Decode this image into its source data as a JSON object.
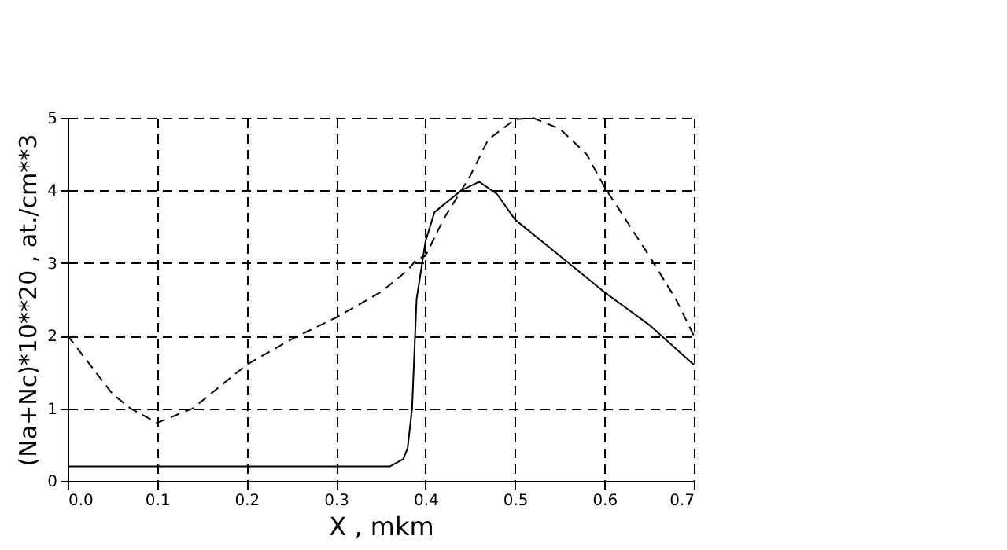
{
  "chart_data": {
    "type": "line",
    "xlabel": "X  ,  mkm",
    "ylabel": "(Na+Nc)*10**20  ,  at./cm**3",
    "xlim": [
      0,
      0.7
    ],
    "ylim": [
      0,
      5
    ],
    "xticks": [
      {
        "value": 0,
        "label": "0.0"
      },
      0.1,
      0.2,
      0.3,
      0.4,
      0.5,
      0.6,
      0.7
    ],
    "yticks": [
      0,
      1,
      2,
      3,
      4,
      5
    ],
    "grid": true,
    "marker": "none",
    "series": [
      {
        "color": "#000000",
        "line_style": "solid",
        "x": [
          0,
          0.1,
          0.2,
          0.3,
          0.36,
          0.375,
          0.38,
          0.385,
          0.39,
          0.4,
          0.41,
          0.42,
          0.44,
          0.46,
          0.48,
          0.5,
          0.55,
          0.6,
          0.65,
          0.7
        ],
        "values": [
          0.2,
          0.2,
          0.2,
          0.2,
          0.2,
          0.3,
          0.45,
          1.0,
          2.5,
          3.3,
          3.7,
          3.8,
          4.0,
          4.12,
          3.95,
          3.6,
          3.1,
          2.6,
          2.15,
          1.6
        ]
      },
      {
        "color": "#000000",
        "line_style": "dashed",
        "x": [
          0,
          0.05,
          0.07,
          0.1,
          0.14,
          0.2,
          0.25,
          0.3,
          0.35,
          0.38,
          0.39,
          0.4,
          0.42,
          0.45,
          0.47,
          0.5,
          0.52,
          0.55,
          0.58,
          0.6,
          0.65,
          0.68,
          0.7
        ],
        "values": [
          2.0,
          1.2,
          1.0,
          0.8,
          1.0,
          1.6,
          1.95,
          2.25,
          2.6,
          2.9,
          3.05,
          3.1,
          3.6,
          4.2,
          4.7,
          4.98,
          5.0,
          4.85,
          4.5,
          4.05,
          3.1,
          2.5,
          2.0
        ]
      }
    ]
  }
}
